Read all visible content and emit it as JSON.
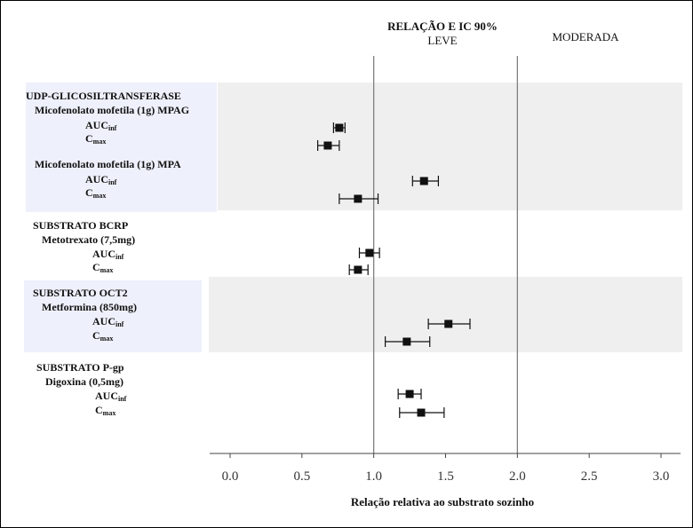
{
  "chart_data": {
    "type": "forest",
    "title": "RELAÇÃO E IC 90%",
    "zones": [
      "LEVE",
      "MODERADA"
    ],
    "xlabel": "Relação relativa ao substrato sozinho",
    "xlim": [
      -0.15,
      3.15
    ],
    "xticks": [
      "0.0",
      "0.5",
      "1.0",
      "1.5",
      "2.0",
      "2.5",
      "3.0"
    ],
    "xtick_values": [
      0,
      0.5,
      1.0,
      1.5,
      2.0,
      2.5,
      3.0
    ],
    "reference_lines": [
      1.0,
      2.0
    ],
    "groups": [
      {
        "header": "UDP-GLICOSILTRANSFERASE",
        "subgroups": [
          {
            "name": "Micofenolato mofetila (1g) MPAG",
            "rows": [
              {
                "metric": "AUC",
                "sub": "inf",
                "value": 0.76,
                "lower": 0.72,
                "upper": 0.8
              },
              {
                "metric": "C",
                "sub": "max",
                "value": 0.68,
                "lower": 0.61,
                "upper": 0.76
              }
            ]
          },
          {
            "name": "Micofenolato mofetila (1g) MPA",
            "rows": [
              {
                "metric": "AUC",
                "sub": "inf",
                "value": 1.35,
                "lower": 1.27,
                "upper": 1.45
              },
              {
                "metric": "C",
                "sub": "max",
                "value": 0.89,
                "lower": 0.76,
                "upper": 1.03
              }
            ]
          }
        ]
      },
      {
        "header": "SUBSTRATO BCRP",
        "subgroups": [
          {
            "name": "Metotrexato (7,5mg)",
            "rows": [
              {
                "metric": "AUC",
                "sub": "inf",
                "value": 0.97,
                "lower": 0.9,
                "upper": 1.04
              },
              {
                "metric": "C",
                "sub": "max",
                "value": 0.89,
                "lower": 0.83,
                "upper": 0.96
              }
            ]
          }
        ]
      },
      {
        "header": "SUBSTRATO OCT2",
        "subgroups": [
          {
            "name": "Metformina (850mg)",
            "rows": [
              {
                "metric": "AUC",
                "sub": "inf",
                "value": 1.52,
                "lower": 1.38,
                "upper": 1.67
              },
              {
                "metric": "C",
                "sub": "max",
                "value": 1.23,
                "lower": 1.08,
                "upper": 1.39
              }
            ]
          }
        ]
      },
      {
        "header": "SUBSTRATO P-gp",
        "subgroups": [
          {
            "name": "Digoxina (0,5mg)",
            "rows": [
              {
                "metric": "AUC",
                "sub": "inf",
                "value": 1.25,
                "lower": 1.17,
                "upper": 1.33
              },
              {
                "metric": "C",
                "sub": "max",
                "value": 1.33,
                "lower": 1.18,
                "upper": 1.49
              }
            ]
          }
        ]
      }
    ]
  }
}
